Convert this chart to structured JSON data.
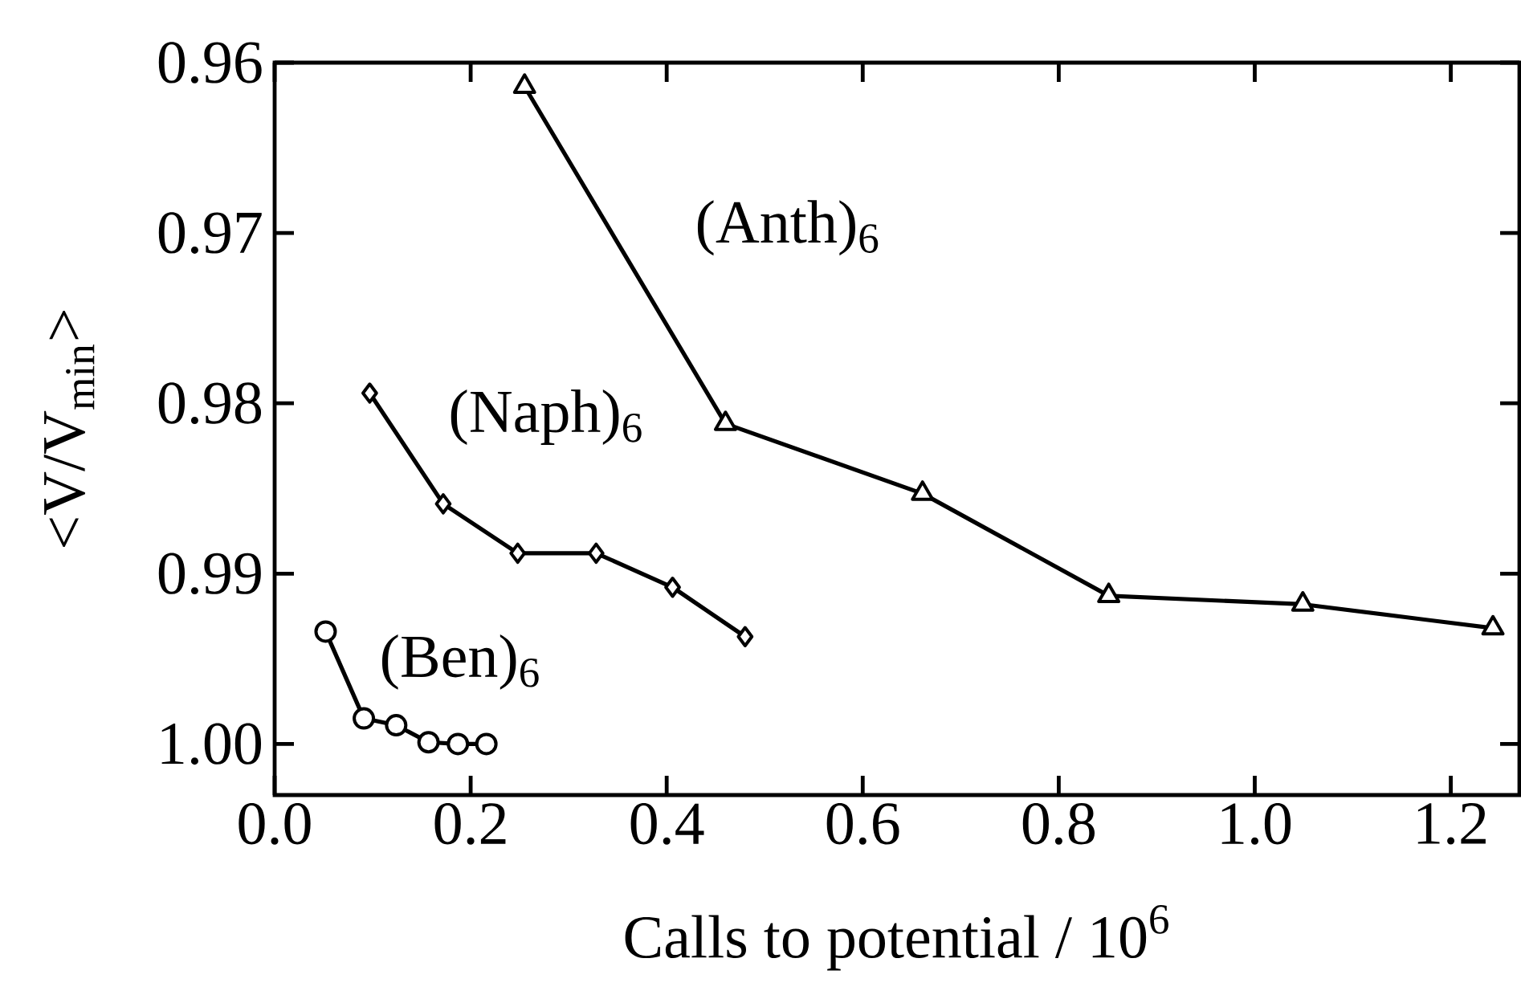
{
  "chart_data": {
    "type": "line",
    "xlabel": "Calls to potential / 10$^{6}$",
    "ylabel": "<V/V$_{min}$>",
    "xlim": [
      0,
      1.27
    ],
    "ylim": [
      1.003,
      0.96
    ],
    "xticks": [
      {
        "value": 0,
        "label": "0.0"
      },
      0.2,
      0.4,
      0.6,
      0.8,
      {
        "value": 1.0,
        "label": "1.0"
      },
      1.2
    ],
    "yticks": [
      0.96,
      0.97,
      0.98,
      0.99,
      {
        "value": 1.0,
        "label": "1.00"
      }
    ],
    "grid": false,
    "legend": false,
    "series": [
      {
        "name": "(Anth)$_{6}$",
        "color": "#000000",
        "marker": "triangle",
        "line_style": "solid",
        "x": [
          0.255,
          0.46,
          0.661,
          0.851,
          1.049,
          1.243
        ],
        "values": [
          0.9614,
          0.9812,
          0.9853,
          0.9913,
          0.9918,
          0.9932
        ]
      },
      {
        "name": "(Naph)$_{6}$",
        "color": "#000000",
        "marker": "diamond",
        "line_style": "solid",
        "x": [
          0.097,
          0.172,
          0.248,
          0.328,
          0.406,
          0.48
        ],
        "values": [
          0.9794,
          0.9859,
          0.9888,
          0.9888,
          0.9908,
          0.9937
        ]
      },
      {
        "name": "(Ben)$_{6}$",
        "color": "#000000",
        "marker": "circle",
        "line_style": "solid",
        "x": [
          0.052,
          0.091,
          0.124,
          0.157,
          0.187,
          0.216
        ],
        "values": [
          0.9934,
          0.9985,
          0.9989,
          0.9999,
          1.0,
          1.0
        ]
      }
    ]
  }
}
